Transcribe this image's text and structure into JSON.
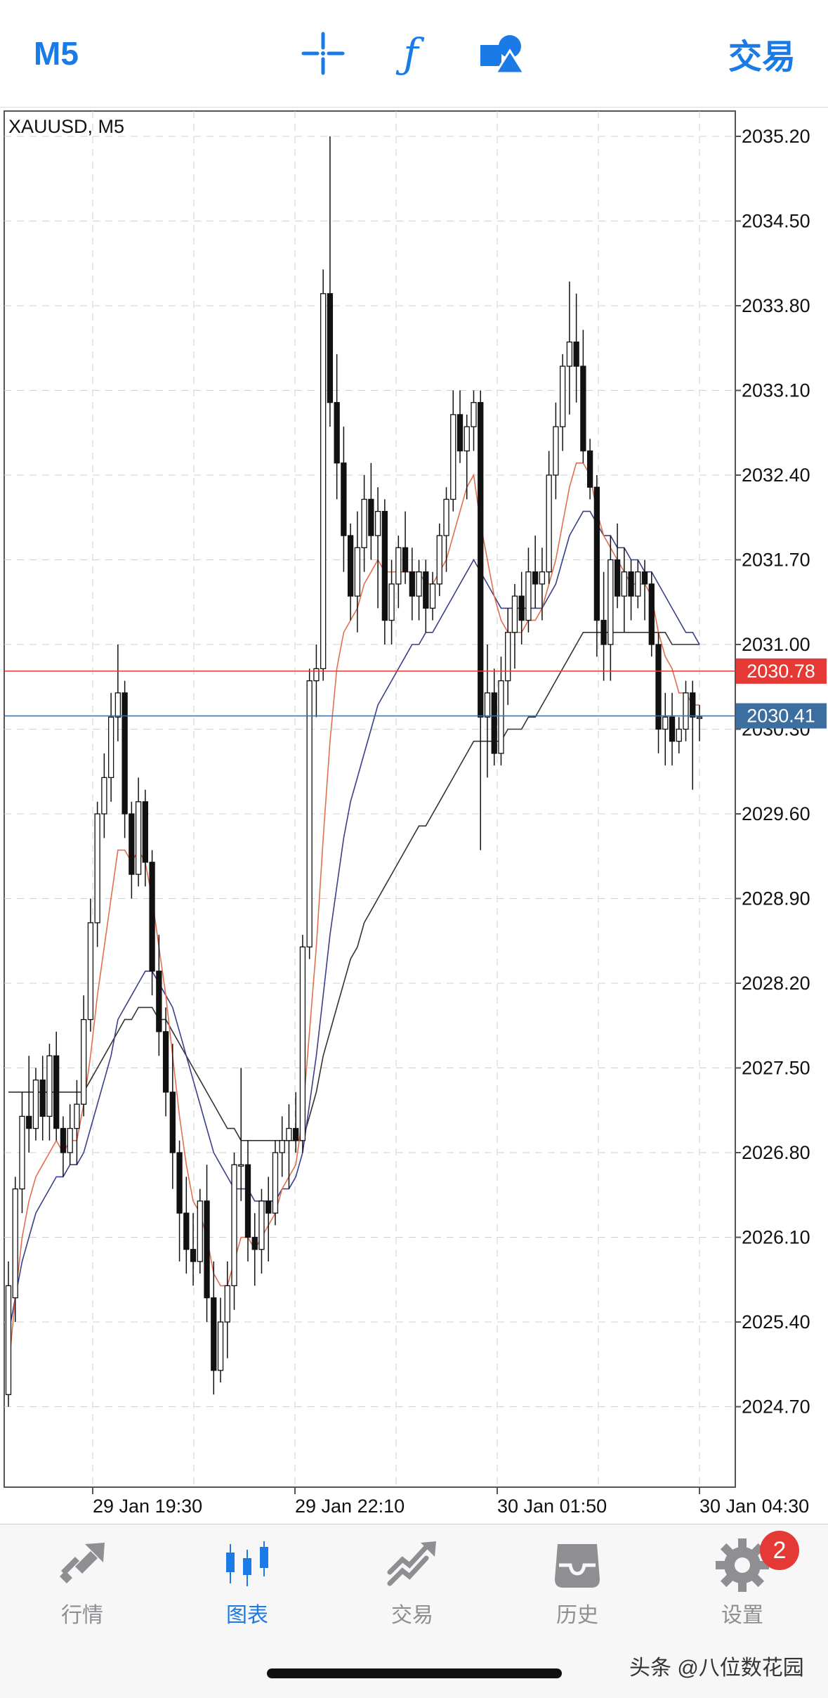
{
  "header": {
    "timeframe": "M5",
    "crosshair_icon": "crosshair-icon",
    "indicator_icon": "function-icon",
    "objects_icon": "shapes-icon",
    "trade_label": "交易"
  },
  "chart": {
    "symbol_label": "XAUUSD, M5",
    "price_levels": [
      "2035.20",
      "2034.50",
      "2033.80",
      "2033.10",
      "2032.40",
      "2031.70",
      "2031.00",
      "2030.30",
      "2029.60",
      "2028.90",
      "2028.20",
      "2027.50",
      "2026.80",
      "2026.10",
      "2025.40",
      "2024.70"
    ],
    "time_labels": [
      "29 Jan 19:30",
      "29 Jan 22:10",
      "30 Jan 01:50",
      "30 Jan 04:30"
    ],
    "ask_price": "2030.78",
    "bid_price": "2030.41",
    "colors": {
      "ask": "#e53935",
      "bid": "#3c6ea0",
      "ma_fast": "#e07050",
      "ma_mid": "#3a3f8a",
      "ma_slow": "#333333",
      "grid": "#d0d0d0"
    },
    "chart_data": {
      "type": "candlestick",
      "title": "XAUUSD, M5",
      "ylim": [
        2024.0,
        2035.5
      ],
      "candles": [
        [
          2024.8,
          2025.9,
          2024.7,
          2025.7
        ],
        [
          2025.6,
          2026.6,
          2025.4,
          2026.5
        ],
        [
          2026.5,
          2027.3,
          2026.3,
          2027.1
        ],
        [
          2027.1,
          2027.6,
          2026.8,
          2027.0
        ],
        [
          2027.0,
          2027.5,
          2026.9,
          2027.4
        ],
        [
          2027.4,
          2027.6,
          2026.9,
          2027.1
        ],
        [
          2027.1,
          2027.7,
          2026.9,
          2027.6
        ],
        [
          2027.6,
          2027.8,
          2026.9,
          2027.0
        ],
        [
          2027.0,
          2027.1,
          2026.6,
          2026.8
        ],
        [
          2026.8,
          2027.2,
          2026.7,
          2027.0
        ],
        [
          2027.0,
          2027.4,
          2026.7,
          2027.2
        ],
        [
          2027.2,
          2028.1,
          2027.1,
          2027.9
        ],
        [
          2027.9,
          2028.9,
          2027.8,
          2028.7
        ],
        [
          2028.7,
          2029.7,
          2028.5,
          2029.6
        ],
        [
          2029.6,
          2030.1,
          2029.4,
          2029.9
        ],
        [
          2029.9,
          2030.6,
          2029.7,
          2030.4
        ],
        [
          2030.4,
          2031.0,
          2030.2,
          2030.6
        ],
        [
          2030.6,
          2030.7,
          2029.4,
          2029.6
        ],
        [
          2029.6,
          2029.7,
          2028.9,
          2029.1
        ],
        [
          2029.1,
          2029.9,
          2029.0,
          2029.7
        ],
        [
          2029.7,
          2029.8,
          2029.0,
          2029.2
        ],
        [
          2029.2,
          2029.3,
          2028.1,
          2028.3
        ],
        [
          2028.3,
          2028.6,
          2027.6,
          2027.8
        ],
        [
          2027.8,
          2028.0,
          2027.1,
          2027.3
        ],
        [
          2027.3,
          2027.7,
          2026.5,
          2026.8
        ],
        [
          2026.8,
          2026.9,
          2025.9,
          2026.3
        ],
        [
          2026.3,
          2026.6,
          2025.8,
          2026.0
        ],
        [
          2026.0,
          2026.3,
          2025.7,
          2025.9
        ],
        [
          2025.9,
          2026.5,
          2025.8,
          2026.4
        ],
        [
          2026.4,
          2026.7,
          2025.4,
          2025.6
        ],
        [
          2025.6,
          2025.9,
          2024.8,
          2025.0
        ],
        [
          2025.0,
          2025.6,
          2024.9,
          2025.4
        ],
        [
          2025.4,
          2025.9,
          2025.1,
          2025.7
        ],
        [
          2025.7,
          2026.8,
          2025.5,
          2026.7
        ],
        [
          2026.7,
          2027.5,
          2026.4,
          2026.7
        ],
        [
          2026.7,
          2026.9,
          2025.9,
          2026.1
        ],
        [
          2026.1,
          2026.3,
          2025.7,
          2026.0
        ],
        [
          2026.0,
          2026.5,
          2025.8,
          2026.4
        ],
        [
          2026.4,
          2026.6,
          2025.9,
          2026.3
        ],
        [
          2026.3,
          2026.9,
          2026.2,
          2026.8
        ],
        [
          2026.8,
          2027.1,
          2026.6,
          2026.9
        ],
        [
          2026.9,
          2027.2,
          2026.5,
          2027.0
        ],
        [
          2027.0,
          2027.3,
          2026.8,
          2026.9
        ],
        [
          2026.9,
          2028.6,
          2026.8,
          2028.5
        ],
        [
          2028.5,
          2030.8,
          2028.4,
          2030.7
        ],
        [
          2030.7,
          2031.0,
          2030.4,
          2030.8
        ],
        [
          2030.8,
          2034.1,
          2030.7,
          2033.9
        ],
        [
          2033.9,
          2035.2,
          2032.8,
          2033.0
        ],
        [
          2033.0,
          2033.4,
          2032.2,
          2032.5
        ],
        [
          2032.5,
          2032.8,
          2031.6,
          2031.9
        ],
        [
          2031.9,
          2032.0,
          2031.2,
          2031.4
        ],
        [
          2031.4,
          2032.1,
          2031.1,
          2031.8
        ],
        [
          2031.8,
          2032.4,
          2031.6,
          2032.2
        ],
        [
          2032.2,
          2032.5,
          2031.7,
          2031.9
        ],
        [
          2031.9,
          2032.3,
          2031.3,
          2032.1
        ],
        [
          2032.1,
          2032.2,
          2031.0,
          2031.2
        ],
        [
          2031.2,
          2031.7,
          2031.0,
          2031.5
        ],
        [
          2031.5,
          2031.9,
          2031.3,
          2031.8
        ],
        [
          2031.8,
          2032.1,
          2031.5,
          2031.6
        ],
        [
          2031.6,
          2031.8,
          2031.2,
          2031.4
        ],
        [
          2031.4,
          2031.7,
          2031.2,
          2031.6
        ],
        [
          2031.6,
          2031.7,
          2031.1,
          2031.3
        ],
        [
          2031.3,
          2031.6,
          2031.2,
          2031.5
        ],
        [
          2031.5,
          2032.0,
          2031.4,
          2031.9
        ],
        [
          2031.9,
          2032.3,
          2031.6,
          2032.2
        ],
        [
          2032.2,
          2033.1,
          2032.1,
          2032.9
        ],
        [
          2032.9,
          2033.1,
          2032.5,
          2032.6
        ],
        [
          2032.6,
          2032.9,
          2032.2,
          2032.8
        ],
        [
          2032.8,
          2033.1,
          2032.6,
          2033.0
        ],
        [
          2033.0,
          2033.1,
          2029.3,
          2030.4
        ],
        [
          2030.4,
          2031.0,
          2029.9,
          2030.6
        ],
        [
          2030.6,
          2030.8,
          2030.0,
          2030.1
        ],
        [
          2030.1,
          2030.9,
          2030.0,
          2030.7
        ],
        [
          2030.7,
          2031.3,
          2030.5,
          2031.1
        ],
        [
          2031.1,
          2031.5,
          2030.8,
          2031.4
        ],
        [
          2031.4,
          2031.6,
          2031.0,
          2031.2
        ],
        [
          2031.2,
          2031.8,
          2031.1,
          2031.6
        ],
        [
          2031.6,
          2031.9,
          2031.3,
          2031.5
        ],
        [
          2031.5,
          2031.8,
          2031.2,
          2031.6
        ],
        [
          2031.6,
          2032.6,
          2031.5,
          2032.4
        ],
        [
          2032.4,
          2033.0,
          2032.2,
          2032.8
        ],
        [
          2032.8,
          2033.4,
          2032.6,
          2033.3
        ],
        [
          2033.3,
          2034.0,
          2032.9,
          2033.5
        ],
        [
          2033.5,
          2033.9,
          2033.0,
          2033.3
        ],
        [
          2033.3,
          2033.6,
          2032.5,
          2032.6
        ],
        [
          2032.6,
          2032.7,
          2032.2,
          2032.3
        ],
        [
          2032.3,
          2032.4,
          2030.9,
          2031.2
        ],
        [
          2031.2,
          2031.6,
          2030.7,
          2031.0
        ],
        [
          2031.0,
          2031.9,
          2030.7,
          2031.7
        ],
        [
          2031.7,
          2032.0,
          2031.3,
          2031.4
        ],
        [
          2031.4,
          2031.8,
          2031.1,
          2031.6
        ],
        [
          2031.6,
          2031.7,
          2031.2,
          2031.4
        ],
        [
          2031.4,
          2031.7,
          2031.3,
          2031.6
        ],
        [
          2031.6,
          2031.7,
          2031.2,
          2031.5
        ],
        [
          2031.5,
          2031.6,
          2030.9,
          2031.0
        ],
        [
          2031.0,
          2031.1,
          2030.1,
          2030.3
        ],
        [
          2030.3,
          2030.6,
          2030.0,
          2030.4
        ],
        [
          2030.4,
          2030.6,
          2030.0,
          2030.2
        ],
        [
          2030.2,
          2030.4,
          2030.1,
          2030.3
        ],
        [
          2030.3,
          2030.7,
          2030.2,
          2030.6
        ],
        [
          2030.6,
          2030.7,
          2029.8,
          2030.4
        ],
        [
          2030.4,
          2030.5,
          2030.2,
          2030.4
        ]
      ],
      "ma_fast": [
        2025.0,
        2025.6,
        2026.1,
        2026.4,
        2026.6,
        2026.7,
        2026.8,
        2026.9,
        2026.8,
        2026.9,
        2026.9,
        2027.2,
        2027.6,
        2028.1,
        2028.5,
        2028.9,
        2029.3,
        2029.3,
        2029.2,
        2029.3,
        2029.2,
        2028.9,
        2028.5,
        2028.1,
        2027.6,
        2027.1,
        2026.7,
        2026.4,
        2026.3,
        2026.1,
        2025.8,
        2025.7,
        2025.7,
        2025.9,
        2026.1,
        2026.1,
        2026.0,
        2026.1,
        2026.2,
        2026.3,
        2026.5,
        2026.6,
        2026.7,
        2027.1,
        2027.8,
        2028.5,
        2029.4,
        2030.2,
        2030.8,
        2031.1,
        2031.2,
        2031.3,
        2031.5,
        2031.6,
        2031.7,
        2031.6,
        2031.6,
        2031.6,
        2031.6,
        2031.6,
        2031.6,
        2031.5,
        2031.5,
        2031.6,
        2031.7,
        2031.9,
        2032.1,
        2032.3,
        2032.4,
        2032.0,
        2031.7,
        2031.4,
        2031.2,
        2031.1,
        2031.1,
        2031.1,
        2031.2,
        2031.2,
        2031.3,
        2031.5,
        2031.7,
        2032.0,
        2032.3,
        2032.5,
        2032.5,
        2032.4,
        2032.1,
        2031.9,
        2031.8,
        2031.7,
        2031.6,
        2031.5,
        2031.5,
        2031.5,
        2031.4,
        2031.1,
        2030.9,
        2030.8,
        2030.6,
        2030.6,
        2030.5,
        2030.5
      ],
      "ma_mid": [
        2025.3,
        2025.6,
        2025.9,
        2026.1,
        2026.3,
        2026.4,
        2026.5,
        2026.6,
        2026.6,
        2026.7,
        2026.7,
        2026.8,
        2027.0,
        2027.2,
        2027.4,
        2027.6,
        2027.9,
        2028.0,
        2028.1,
        2028.2,
        2028.3,
        2028.3,
        2028.2,
        2028.1,
        2028.0,
        2027.8,
        2027.6,
        2027.4,
        2027.2,
        2027.0,
        2026.8,
        2026.7,
        2026.6,
        2026.5,
        2026.5,
        2026.5,
        2026.4,
        2026.4,
        2026.4,
        2026.4,
        2026.5,
        2026.5,
        2026.6,
        2026.8,
        2027.2,
        2027.6,
        2028.1,
        2028.6,
        2029.0,
        2029.4,
        2029.7,
        2029.9,
        2030.1,
        2030.3,
        2030.5,
        2030.6,
        2030.7,
        2030.8,
        2030.9,
        2031.0,
        2031.0,
        2031.1,
        2031.1,
        2031.2,
        2031.3,
        2031.4,
        2031.5,
        2031.6,
        2031.7,
        2031.6,
        2031.5,
        2031.4,
        2031.3,
        2031.3,
        2031.3,
        2031.3,
        2031.3,
        2031.3,
        2031.3,
        2031.4,
        2031.5,
        2031.7,
        2031.9,
        2032.0,
        2032.1,
        2032.1,
        2032.0,
        2031.9,
        2031.9,
        2031.8,
        2031.8,
        2031.7,
        2031.7,
        2031.6,
        2031.6,
        2031.5,
        2031.4,
        2031.3,
        2031.2,
        2031.1,
        2031.1,
        2031.0
      ],
      "ma_slow": [
        2027.3,
        2027.3,
        2027.3,
        2027.3,
        2027.3,
        2027.3,
        2027.3,
        2027.3,
        2027.3,
        2027.3,
        2027.3,
        2027.3,
        2027.4,
        2027.5,
        2027.6,
        2027.7,
        2027.8,
        2027.9,
        2027.9,
        2028.0,
        2028.0,
        2028.0,
        2027.9,
        2027.9,
        2027.8,
        2027.7,
        2027.6,
        2027.5,
        2027.4,
        2027.3,
        2027.2,
        2027.1,
        2027.0,
        2027.0,
        2026.9,
        2026.9,
        2026.9,
        2026.9,
        2026.9,
        2026.9,
        2026.9,
        2026.9,
        2026.9,
        2026.9,
        2027.1,
        2027.3,
        2027.6,
        2027.8,
        2028.0,
        2028.2,
        2028.4,
        2028.5,
        2028.7,
        2028.8,
        2028.9,
        2029.0,
        2029.1,
        2029.2,
        2029.3,
        2029.4,
        2029.5,
        2029.5,
        2029.6,
        2029.7,
        2029.8,
        2029.9,
        2030.0,
        2030.1,
        2030.2,
        2030.2,
        2030.2,
        2030.2,
        2030.2,
        2030.3,
        2030.3,
        2030.3,
        2030.4,
        2030.4,
        2030.5,
        2030.6,
        2030.7,
        2030.8,
        2030.9,
        2031.0,
        2031.1,
        2031.1,
        2031.1,
        2031.1,
        2031.1,
        2031.1,
        2031.1,
        2031.1,
        2031.1,
        2031.1,
        2031.1,
        2031.1,
        2031.1,
        2031.0,
        2031.0,
        2031.0,
        2031.0,
        2031.0
      ]
    }
  },
  "tabs": [
    {
      "label": "行情",
      "icon": "quotes-icon"
    },
    {
      "label": "图表",
      "icon": "chart-icon"
    },
    {
      "label": "交易",
      "icon": "trade-icon"
    },
    {
      "label": "历史",
      "icon": "history-icon"
    },
    {
      "label": "设置",
      "icon": "settings-icon"
    }
  ],
  "settings_badge": "2",
  "watermark": "头条 @八位数花园"
}
